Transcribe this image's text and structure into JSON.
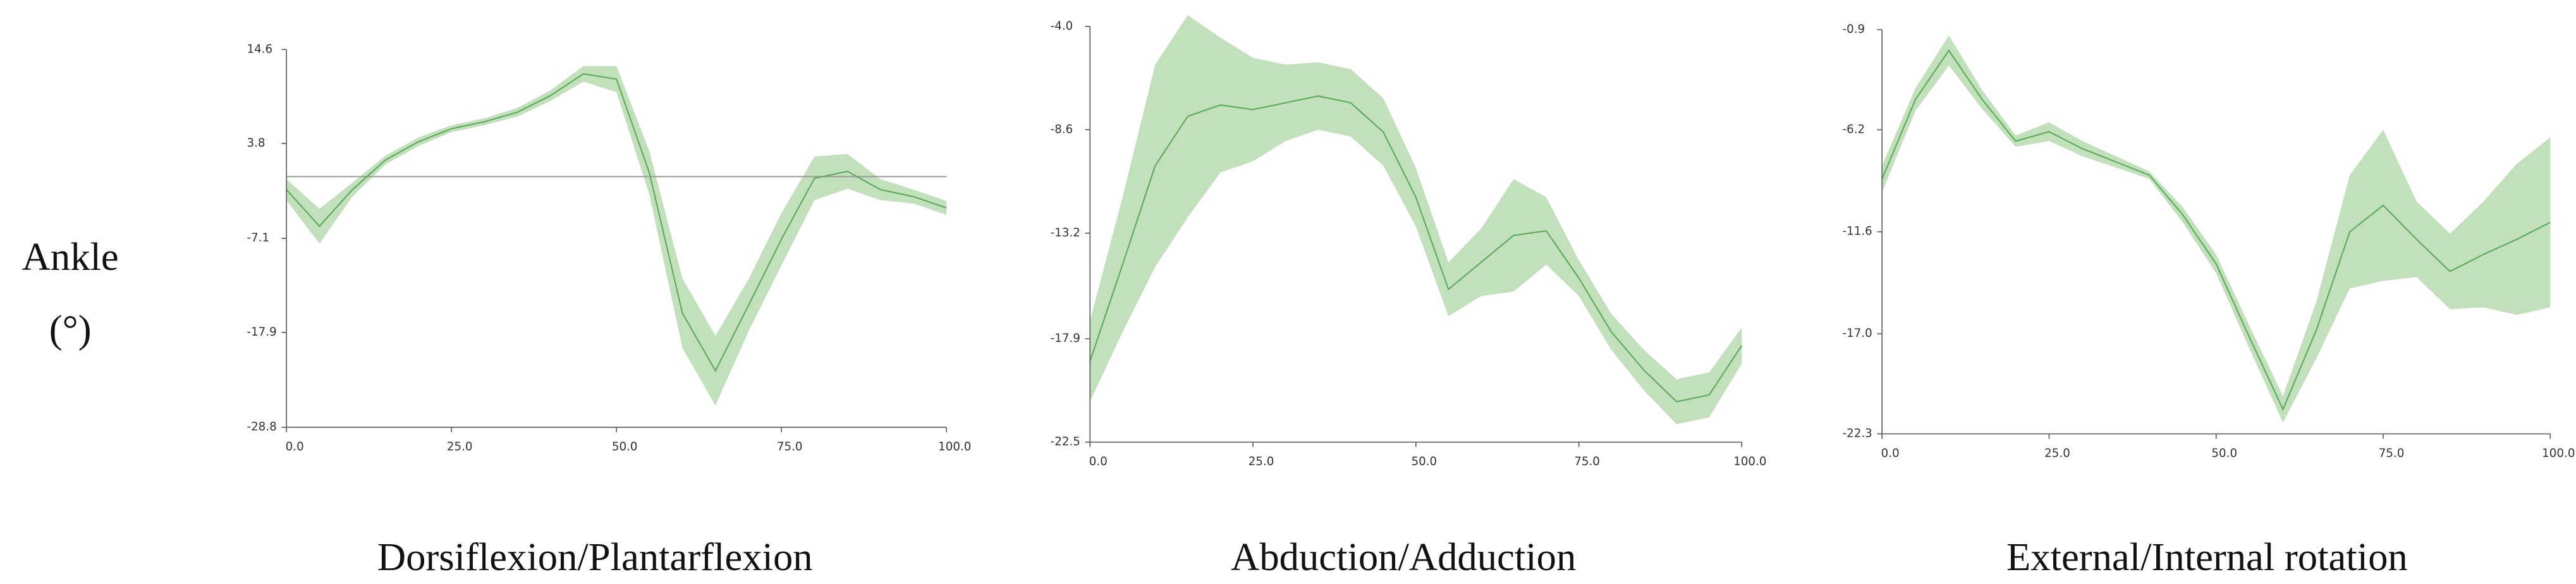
{
  "row_label": [
    "Ankle",
    "(°)"
  ],
  "chart_data": [
    {
      "type": "line",
      "xlabel": "Dorsiflexion/Plantarflexion",
      "x": [
        0,
        5,
        10,
        15,
        20,
        25,
        30,
        35,
        40,
        45,
        50,
        55,
        60,
        65,
        70,
        75,
        80,
        85,
        90,
        95,
        100
      ],
      "series": [
        {
          "color": "#5aaa5a",
          "band_color": "#c3e0bd",
          "values": [
            -1.5,
            -5.7,
            -1.5,
            1.9,
            4.0,
            5.5,
            6.3,
            7.4,
            9.3,
            11.8,
            11.2,
            0.4,
            -15.7,
            -22.3,
            -14.8,
            -7.2,
            -0.2,
            0.6,
            -1.5,
            -2.3,
            -3.6
          ],
          "sd": [
            1.2,
            2,
            0.8,
            0.5,
            0.5,
            0.4,
            0.4,
            0.5,
            0.6,
            0.9,
            1.5,
            2.5,
            4,
            4,
            3,
            3,
            2.5,
            2,
            1.2,
            0.8,
            0.8
          ]
        }
      ],
      "hline": 0,
      "hline_color": "#999999",
      "xlim": [
        0,
        100
      ],
      "xticks": [
        {
          "value": 0,
          "label": "0.0"
        },
        {
          "value": 25,
          "label": "25.0"
        },
        {
          "value": 50,
          "label": "50.0"
        },
        {
          "value": 75,
          "label": "75.0"
        },
        {
          "value": 100,
          "label": "100.0"
        }
      ],
      "ylim": [
        -28.8,
        14.6
      ],
      "yticks": [
        14.6,
        3.8,
        -7.1,
        -17.9,
        -28.8
      ]
    },
    {
      "type": "line",
      "xlabel": "Abduction/Adduction",
      "x": [
        0,
        5,
        10,
        15,
        20,
        25,
        30,
        35,
        40,
        45,
        50,
        55,
        60,
        65,
        70,
        75,
        80,
        85,
        90,
        95,
        100
      ],
      "series": [
        {
          "color": "#5aaa5a",
          "band_color": "#c3e0bd",
          "values": [
            -18.9,
            -14.6,
            -10.2,
            -8.0,
            -7.5,
            -7.7,
            -7.4,
            -7.1,
            -7.4,
            -8.7,
            -11.6,
            -15.7,
            -14.5,
            -13.3,
            -13.1,
            -15.2,
            -17.6,
            -19.3,
            -20.7,
            -20.4,
            -18.2
          ],
          "sd": [
            1.8,
            3,
            4.5,
            4.5,
            3,
            2.3,
            1.7,
            1.5,
            1.5,
            1.5,
            1.3,
            1.2,
            1.5,
            2.5,
            1.5,
            0.8,
            0.8,
            0.9,
            1.0,
            1.0,
            0.8
          ]
        }
      ],
      "xlim": [
        0,
        100
      ],
      "xticks": [
        {
          "value": 0,
          "label": "0.0"
        },
        {
          "value": 25,
          "label": "25.0"
        },
        {
          "value": 50,
          "label": "50.0"
        },
        {
          "value": 75,
          "label": "75.0"
        },
        {
          "value": 100,
          "label": "100.0"
        }
      ],
      "ylim": [
        -22.5,
        -4.0
      ],
      "yticks": [
        {
          "value": -4.0,
          "label": "-4.0"
        },
        -8.6,
        -13.2,
        -17.9,
        -22.5
      ]
    },
    {
      "type": "line",
      "xlabel": "External/Internal rotation",
      "x": [
        0,
        5,
        10,
        15,
        20,
        25,
        30,
        35,
        40,
        45,
        50,
        55,
        60,
        65,
        70,
        75,
        80,
        85,
        90,
        95,
        100
      ],
      "series": [
        {
          "color": "#5aaa5a",
          "band_color": "#c3e0bd",
          "values": [
            -8.8,
            -4.6,
            -2.0,
            -4.6,
            -6.8,
            -6.3,
            -7.2,
            -7.9,
            -8.6,
            -10.7,
            -13.3,
            -17.2,
            -21.0,
            -16.8,
            -11.6,
            -10.2,
            -12.0,
            -13.7,
            -12.8,
            -12.0,
            -11.1
          ],
          "sd": [
            0.7,
            0.6,
            0.8,
            0.5,
            0.3,
            0.5,
            0.4,
            0.3,
            0.2,
            0.4,
            0.5,
            0.6,
            0.7,
            1.5,
            3,
            4,
            2,
            2,
            2.8,
            4,
            4.5
          ]
        }
      ],
      "xlim": [
        0,
        100
      ],
      "xticks": [
        {
          "value": 0,
          "label": "0.0"
        },
        {
          "value": 25,
          "label": "25.0"
        },
        {
          "value": 50,
          "label": "50.0"
        },
        {
          "value": 75,
          "label": "75.0"
        },
        {
          "value": 100,
          "label": "100.0"
        }
      ],
      "ylim": [
        -22.3,
        -0.9
      ],
      "yticks": [
        -0.9,
        -6.2,
        -11.6,
        {
          "value": -17.0,
          "label": "-17.0"
        },
        -22.3
      ]
    }
  ]
}
